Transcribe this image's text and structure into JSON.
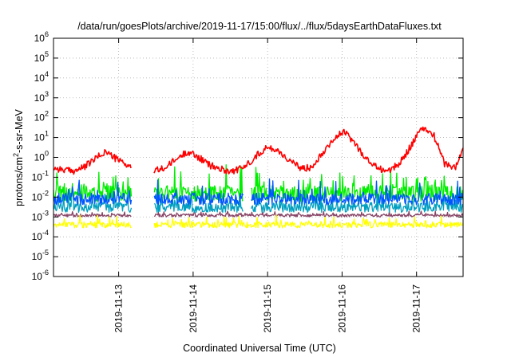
{
  "chart_data": {
    "type": "line",
    "title": "/data/run/goesPlots/archive/2019-11-17/15:00/flux/../flux/5daysEarthDataFluxes.txt",
    "xlabel": "Coordinated Universal Time (UTC)",
    "ylabel": {
      "base": "protons/cm",
      "sup": "2",
      "rest": "-s-sr-MeV"
    },
    "y_scale": "log",
    "ylim": [
      1e-06,
      1000000.0
    ],
    "y_ticks": [
      {
        "value": 1e-06,
        "base": "10",
        "exp": "-6"
      },
      {
        "value": 1e-05,
        "base": "10",
        "exp": "-5"
      },
      {
        "value": 0.0001,
        "base": "10",
        "exp": "-4"
      },
      {
        "value": 0.001,
        "base": "10",
        "exp": "-3"
      },
      {
        "value": 0.01,
        "base": "10",
        "exp": "-2"
      },
      {
        "value": 0.1,
        "base": "10",
        "exp": "-1"
      },
      {
        "value": 1,
        "base": "10",
        "exp": "0"
      },
      {
        "value": 10,
        "base": "10",
        "exp": "1"
      },
      {
        "value": 100,
        "base": "10",
        "exp": "2"
      },
      {
        "value": 1000.0,
        "base": "10",
        "exp": "3"
      },
      {
        "value": 10000.0,
        "base": "10",
        "exp": "4"
      },
      {
        "value": 100000.0,
        "base": "10",
        "exp": "5"
      },
      {
        "value": 1000000.0,
        "base": "10",
        "exp": "6"
      }
    ],
    "xlim": [
      "2019-11-12T03:00",
      "2019-11-17T15:00"
    ],
    "x_ticks": [
      "2019-11-13",
      "2019-11-14",
      "2019-11-15",
      "2019-11-16",
      "2019-11-17"
    ],
    "grid": "dotted",
    "legend": "none",
    "series": [
      {
        "color": "#ff0000",
        "gaps": [
          [
            1.05,
            1.35
          ]
        ],
        "x": [
          0,
          0.1,
          0.25,
          0.4,
          0.55,
          0.7,
          0.85,
          1.0,
          1.05,
          1.35,
          1.5,
          1.65,
          1.8,
          1.95,
          2.1,
          2.25,
          2.4,
          2.55,
          2.7,
          2.85,
          3.0,
          3.15,
          3.3,
          3.45,
          3.6,
          3.75,
          3.9,
          4.05,
          4.2,
          4.35,
          4.5,
          4.65,
          4.8,
          4.95,
          5.1,
          5.25,
          5.4,
          5.5
        ],
        "values": [
          0.3,
          0.25,
          0.2,
          0.3,
          0.8,
          2.0,
          0.8,
          0.4,
          0.3,
          0.2,
          0.3,
          0.8,
          2.0,
          1.0,
          0.4,
          0.25,
          0.2,
          0.3,
          1.0,
          3.0,
          2.5,
          0.8,
          0.3,
          0.3,
          1.5,
          8.0,
          20.0,
          5.0,
          0.8,
          0.3,
          0.2,
          0.5,
          4.0,
          30.0,
          15.0,
          0.5,
          0.3,
          3.0
        ]
      },
      {
        "color": "#00ee00",
        "gaps": [
          [
            1.05,
            1.35
          ],
          [
            2.55,
            2.65
          ]
        ],
        "center": 0.015,
        "spread": 0.8
      },
      {
        "color": "#0055ff",
        "gaps": [
          [
            1.05,
            1.35
          ],
          [
            2.55,
            2.65
          ]
        ],
        "center": 0.008,
        "spread": 0.6
      },
      {
        "color": "#00a0c0",
        "gaps": [
          [
            1.05,
            1.35
          ],
          [
            2.55,
            2.65
          ]
        ],
        "center": 0.003,
        "spread": 0.5
      },
      {
        "color": "#ffff00",
        "gaps": [
          [
            1.05,
            1.35
          ]
        ],
        "center": 0.0004,
        "spread": 0.3
      },
      {
        "color": "#884466",
        "gaps": [
          [
            1.05,
            1.35
          ]
        ],
        "center": 0.0012,
        "spread": 0.15
      }
    ]
  }
}
